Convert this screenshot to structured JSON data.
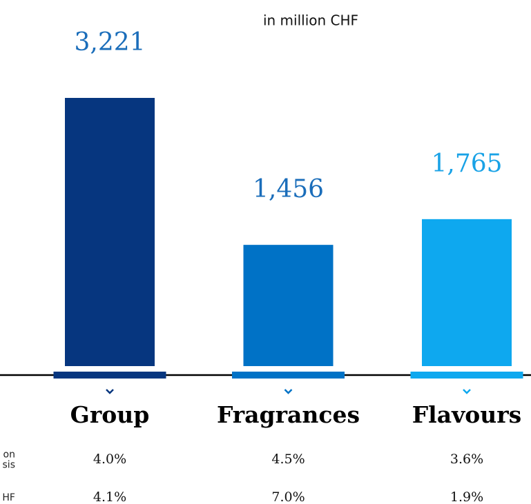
{
  "chart_data": {
    "type": "bar",
    "subtitle": "in million CHF",
    "categories": [
      "Group",
      "Fragrances",
      "Flavours"
    ],
    "values": [
      3221,
      1456,
      1765
    ],
    "value_labels": [
      "3,221",
      "1,456",
      "1,765"
    ],
    "colors": [
      "#06367f",
      "#0072c6",
      "#0ea8ef"
    ],
    "label_colors": [
      "#1a6dba",
      "#1a6dba",
      "#19a2e6"
    ],
    "rows": [
      {
        "label": [
          "on",
          "sis"
        ],
        "values": [
          4.0,
          4.5,
          3.6
        ],
        "value_labels": [
          "4.0%",
          "4.5%",
          "3.6%"
        ]
      },
      {
        "label": [
          "HF"
        ],
        "values": [
          4.1,
          7.0,
          1.9
        ],
        "value_labels": [
          "4.1%",
          "7.0%",
          "1.9%"
        ]
      }
    ]
  }
}
